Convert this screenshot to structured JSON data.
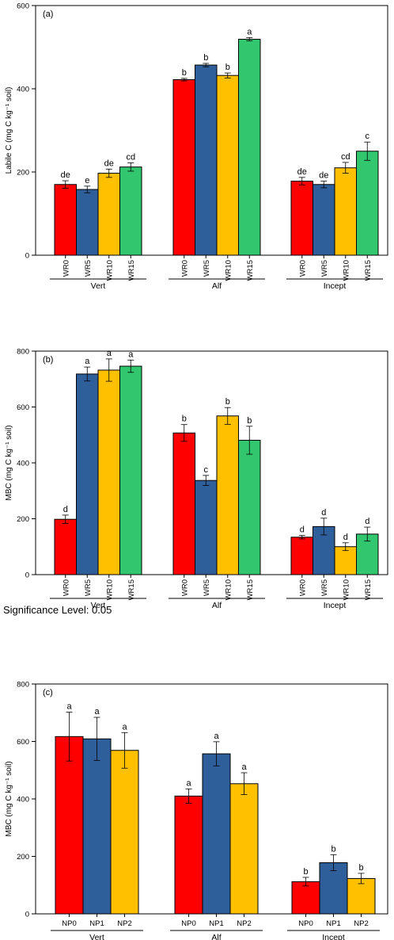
{
  "significance_note": "Significance Level: 0.05",
  "colors": {
    "WR0": "#ff0000",
    "WR5": "#2f5f9a",
    "WR10": "#ffc000",
    "WR15": "#32c66e",
    "NP0": "#ff0000",
    "NP1": "#2f5f9a",
    "NP2": "#ffc000"
  },
  "chart_data": [
    {
      "type": "bar",
      "panel_label": "(a)",
      "ylabel": "Labile C (mg C kg⁻¹ soil)",
      "ylim": [
        0,
        600
      ],
      "yticks": [
        0,
        200,
        400,
        600
      ],
      "grid": false,
      "groups": [
        "Vert",
        "Alf",
        "Incept"
      ],
      "categories": [
        "WR0",
        "WR5",
        "WR10",
        "WR15"
      ],
      "series": [
        {
          "values": [
            170,
            158,
            197,
            212
          ],
          "errors": [
            9,
            8,
            10,
            10
          ],
          "letters": [
            "de",
            "e",
            "de",
            "cd"
          ]
        },
        {
          "values": [
            422,
            457,
            432,
            519
          ],
          "errors": [
            3,
            4,
            6,
            4
          ],
          "letters": [
            "b",
            "b",
            "b",
            "a"
          ]
        },
        {
          "values": [
            178,
            170,
            210,
            250
          ],
          "errors": [
            9,
            8,
            13,
            22
          ],
          "letters": [
            "de",
            "de",
            "cd",
            "c"
          ]
        }
      ]
    },
    {
      "type": "bar",
      "panel_label": "(b)",
      "ylabel": "MBC (mg C kg⁻¹ soil)",
      "ylim": [
        0,
        800
      ],
      "yticks": [
        0,
        200,
        400,
        600,
        800
      ],
      "grid": false,
      "groups": [
        "Vert",
        "Alf",
        "Incept"
      ],
      "categories": [
        "WR0",
        "WR5",
        "WR10",
        "WR15"
      ],
      "series": [
        {
          "values": [
            198,
            718,
            732,
            746
          ],
          "errors": [
            15,
            25,
            40,
            22
          ],
          "letters": [
            "d",
            "a",
            "a",
            "a"
          ]
        },
        {
          "values": [
            507,
            337,
            568,
            481
          ],
          "errors": [
            30,
            18,
            30,
            50
          ],
          "letters": [
            "b",
            "c",
            "b",
            "b"
          ]
        },
        {
          "values": [
            134,
            172,
            100,
            145
          ],
          "errors": [
            6,
            30,
            14,
            25
          ],
          "letters": [
            "d",
            "d",
            "d",
            "d"
          ]
        }
      ]
    },
    {
      "type": "bar",
      "panel_label": "(c)",
      "ylabel": "MBC (mg C kg⁻¹ soil)",
      "ylim": [
        0,
        800
      ],
      "yticks": [
        0,
        200,
        400,
        600,
        800
      ],
      "grid": false,
      "groups": [
        "Vert",
        "Alf",
        "Incept"
      ],
      "categories": [
        "NP0",
        "NP1",
        "NP2"
      ],
      "series": [
        {
          "values": [
            617,
            609,
            569
          ],
          "errors": [
            85,
            75,
            62
          ],
          "letters": [
            "a",
            "a",
            "a"
          ]
        },
        {
          "values": [
            410,
            557,
            453
          ],
          "errors": [
            25,
            42,
            38
          ],
          "letters": [
            "a",
            "a",
            "a"
          ]
        },
        {
          "values": [
            112,
            178,
            123
          ],
          "errors": [
            15,
            28,
            18
          ],
          "letters": [
            "b",
            "b",
            "b"
          ]
        }
      ]
    }
  ]
}
